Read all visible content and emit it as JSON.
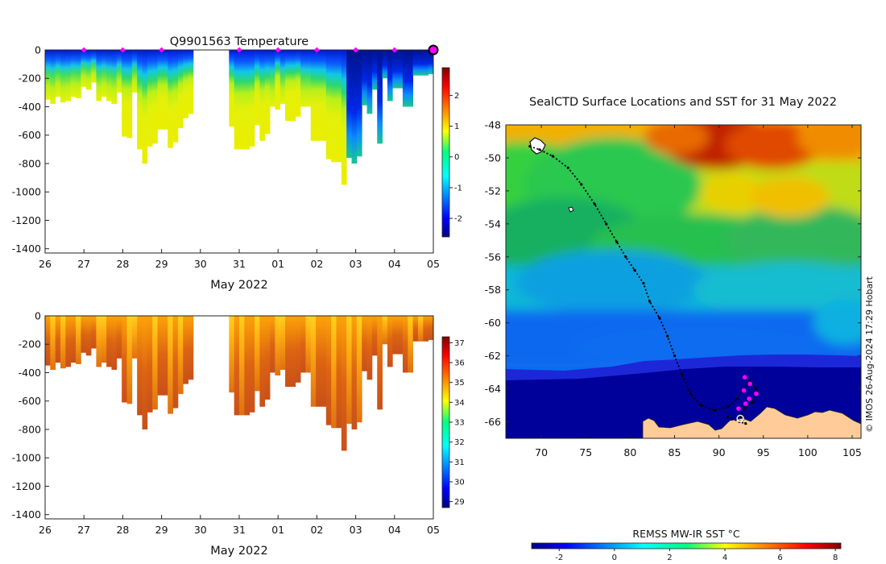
{
  "chart_data": [
    {
      "type": "heatmap",
      "title": "Q9901563  Temperature",
      "xlabel": "May 2022",
      "ylabel": "",
      "x_tick_labels": [
        "26",
        "27",
        "28",
        "29",
        "30",
        "31",
        "01",
        "02",
        "03",
        "04",
        "05"
      ],
      "x_range_days": [
        0,
        10
      ],
      "y_tick_labels": [
        "0",
        "-200",
        "-400",
        "-600",
        "-800",
        "-1000",
        "-1200",
        "-1400"
      ],
      "ylim": [
        -1430,
        0
      ],
      "colorbar": {
        "ticks": [
          "2",
          "1",
          "0",
          "-1",
          "-2"
        ],
        "range": [
          -2.6,
          2.9
        ]
      },
      "dive_depths_m": [
        350,
        380,
        330,
        370,
        360,
        330,
        340,
        260,
        280,
        230,
        360,
        330,
        360,
        380,
        300,
        610,
        620,
        300,
        700,
        800,
        680,
        660,
        560,
        560,
        690,
        650,
        550,
        480,
        450,
        600,
        390,
        300,
        400,
        410,
        540,
        540,
        540,
        700,
        700,
        700,
        680,
        530,
        640,
        590,
        400,
        420,
        380,
        500,
        500,
        470,
        400,
        400,
        640,
        640,
        640,
        770,
        790,
        790,
        950,
        760,
        800,
        750,
        390,
        450,
        280,
        660,
        200,
        360,
        270,
        270,
        400,
        400,
        180,
        180,
        180,
        170
      ],
      "profile_markers_day": [
        1,
        2,
        3,
        5,
        6,
        7,
        8,
        9,
        10
      ],
      "current_marker_day": 10
    },
    {
      "type": "heatmap",
      "title": "",
      "xlabel": "May 2022",
      "ylabel": "",
      "x_tick_labels": [
        "26",
        "27",
        "28",
        "29",
        "30",
        "31",
        "01",
        "02",
        "03",
        "04",
        "05"
      ],
      "x_range_days": [
        0,
        10
      ],
      "y_tick_labels": [
        "0",
        "-200",
        "-400",
        "-600",
        "-800",
        "-1000",
        "-1200",
        "-1400"
      ],
      "ylim": [
        -1430,
        0
      ],
      "colorbar": {
        "ticks": [
          "37",
          "36",
          "35",
          "34",
          "33",
          "32",
          "31",
          "30",
          "29"
        ],
        "range": [
          28.7,
          37.3
        ]
      }
    },
    {
      "type": "heatmap",
      "title": "SealCTD Surface Locations and SST for 31 May 2022",
      "xlabel": "",
      "ylabel": "",
      "x_tick_labels": [
        "70",
        "75",
        "80",
        "85",
        "90",
        "95",
        "100",
        "105"
      ],
      "xlim_lon": [
        66,
        106
      ],
      "y_tick_labels": [
        "-48",
        "-50",
        "-52",
        "-54",
        "-56",
        "-58",
        "-60",
        "-62",
        "-64",
        "-66"
      ],
      "ylim_lat": [
        -67,
        -48
      ],
      "colorbar": {
        "label": "REMSS MW-IR SST °C",
        "ticks": [
          "-2",
          "0",
          "2",
          "4",
          "6",
          "8"
        ],
        "range": [
          -3,
          8.2
        ]
      },
      "track": [
        [
          68.7,
          -49.3
        ],
        [
          69.8,
          -49.5
        ],
        [
          71.3,
          -49.9
        ],
        [
          73.0,
          -50.6
        ],
        [
          74.5,
          -51.6
        ],
        [
          76.0,
          -52.8
        ],
        [
          77.3,
          -54.0
        ],
        [
          78.5,
          -55.1
        ],
        [
          79.5,
          -56.0
        ],
        [
          80.5,
          -56.8
        ],
        [
          81.5,
          -57.6
        ],
        [
          82.2,
          -58.7
        ],
        [
          83.3,
          -59.7
        ],
        [
          84.2,
          -60.8
        ],
        [
          85.0,
          -62.0
        ],
        [
          85.8,
          -63.1
        ],
        [
          86.8,
          -64.3
        ],
        [
          88.0,
          -65.0
        ],
        [
          89.5,
          -65.3
        ],
        [
          91.0,
          -65.1
        ],
        [
          92.0,
          -64.6
        ],
        [
          92.8,
          -64.0
        ],
        [
          93.5,
          -63.5
        ],
        [
          94.2,
          -64.0
        ],
        [
          93.8,
          -64.8
        ],
        [
          92.8,
          -65.2
        ],
        [
          92.5,
          -65.7
        ],
        [
          93.0,
          -66.1
        ],
        [
          92.3,
          -66.0
        ],
        [
          91.0,
          -65.7
        ]
      ],
      "magenta_points": [
        [
          92.9,
          -63.3
        ],
        [
          93.5,
          -63.7
        ],
        [
          92.8,
          -64.1
        ],
        [
          94.2,
          -64.3
        ],
        [
          93.4,
          -64.6
        ],
        [
          93.0,
          -64.9
        ],
        [
          92.2,
          -65.2
        ]
      ]
    }
  ],
  "credit": "© IMOS 26-Aug-2024 17:29 Hobart",
  "colors": {
    "magenta": "#ff00ff",
    "land": "#ffcc99",
    "navy": "#000080"
  }
}
